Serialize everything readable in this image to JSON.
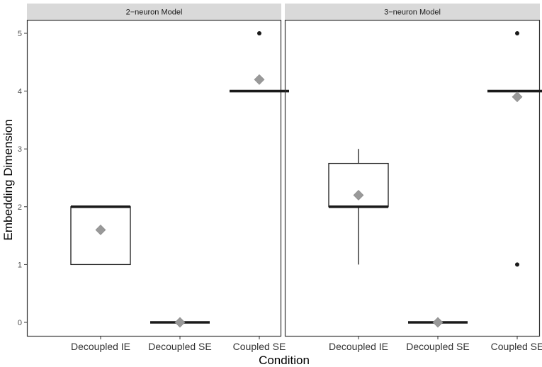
{
  "chart_data": {
    "type": "boxplot",
    "xlabel": "Condition",
    "ylabel": "Embedding Dimension",
    "ylim": [
      -0.3,
      5.3
    ],
    "yticks": [
      0,
      1,
      2,
      3,
      4,
      5
    ],
    "categories": [
      "Decoupled IE",
      "Decoupled SE",
      "Coupled SE"
    ],
    "grid": false,
    "colors": {
      "box_line": "#1a1a1a",
      "mean_marker": "#999999",
      "outlier": "#1a1a1a",
      "strip": "#d9d9d9"
    },
    "panels": [
      {
        "title": "2−neuron Model",
        "boxes": [
          {
            "category": "Decoupled IE",
            "q1": 1,
            "median": 2,
            "q3": 2,
            "whisker_low": 1,
            "whisker_high": 2,
            "mean": 1.6,
            "outliers": []
          },
          {
            "category": "Decoupled SE",
            "q1": 0,
            "median": 0,
            "q3": 0,
            "whisker_low": 0,
            "whisker_high": 0,
            "mean": 0,
            "outliers": []
          },
          {
            "category": "Coupled SE",
            "q1": 4,
            "median": 4,
            "q3": 4,
            "whisker_low": 4,
            "whisker_high": 4,
            "mean": 4.2,
            "outliers": [
              5
            ]
          }
        ]
      },
      {
        "title": "3−neuron Model",
        "boxes": [
          {
            "category": "Decoupled IE",
            "q1": 2,
            "median": 2,
            "q3": 2.75,
            "whisker_low": 1,
            "whisker_high": 3,
            "mean": 2.2,
            "outliers": []
          },
          {
            "category": "Decoupled SE",
            "q1": 0,
            "median": 0,
            "q3": 0,
            "whisker_low": 0,
            "whisker_high": 0,
            "mean": 0,
            "outliers": []
          },
          {
            "category": "Coupled SE",
            "q1": 4,
            "median": 4,
            "q3": 4,
            "whisker_low": 4,
            "whisker_high": 4,
            "mean": 3.9,
            "outliers": [
              5,
              1
            ]
          }
        ]
      }
    ]
  }
}
